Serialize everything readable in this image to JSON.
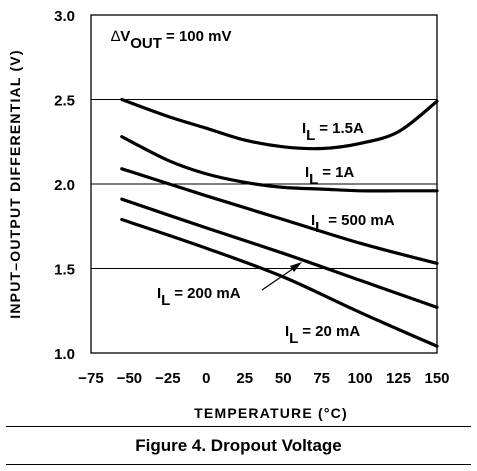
{
  "figure_caption": "Figure 4. Dropout Voltage",
  "chart_data": {
    "type": "line",
    "title": "",
    "xlabel": "TEMPERATURE (°C)",
    "ylabel": "INPUT–OUTPUT DIFFERENTIAL (V)",
    "xlim": [
      -75,
      150
    ],
    "ylim": [
      1.0,
      3.0
    ],
    "xticks": [
      -75,
      -50,
      -25,
      0,
      25,
      50,
      75,
      100,
      125,
      150
    ],
    "yticks": [
      1.0,
      1.5,
      2.0,
      2.5,
      3.0
    ],
    "xtick_labels": [
      "−75",
      "−50",
      "−25",
      "0",
      "25",
      "50",
      "75",
      "100",
      "125",
      "150"
    ],
    "ytick_labels": [
      "1.0",
      "1.5",
      "2.0",
      "2.5",
      "3.0"
    ],
    "grid": true,
    "annotation_delta": "∆",
    "annotation_v": "V",
    "annotation_sub": "OUT",
    "annotation_rest": " = 100 mV",
    "series": [
      {
        "name_prefix": "I",
        "name_sub": "L",
        "name_value": " = 1.5A",
        "x": [
          -55,
          -25,
          0,
          25,
          50,
          75,
          100,
          125,
          150
        ],
        "y": [
          2.5,
          2.4,
          2.33,
          2.26,
          2.22,
          2.21,
          2.24,
          2.31,
          2.49
        ]
      },
      {
        "name_prefix": "I",
        "name_sub": "L",
        "name_value": " = 1A",
        "x": [
          -55,
          -25,
          0,
          25,
          50,
          75,
          100,
          125,
          150
        ],
        "y": [
          2.28,
          2.14,
          2.06,
          2.01,
          1.98,
          1.97,
          1.96,
          1.96,
          1.96
        ]
      },
      {
        "name_prefix": "I",
        "name_sub": "L",
        "name_value": " = 500 mA",
        "x": [
          -55,
          0,
          50,
          100,
          150
        ],
        "y": [
          2.09,
          1.93,
          1.79,
          1.65,
          1.53
        ]
      },
      {
        "name_prefix": "I",
        "name_sub": "L",
        "name_value": " = 200 mA",
        "x": [
          -55,
          0,
          50,
          100,
          150
        ],
        "y": [
          1.91,
          1.74,
          1.59,
          1.43,
          1.27
        ]
      },
      {
        "name_prefix": "I",
        "name_sub": "L",
        "name_value": " = 20 mA",
        "x": [
          -55,
          0,
          50,
          100,
          150
        ],
        "y": [
          1.79,
          1.62,
          1.45,
          1.24,
          1.04
        ]
      }
    ]
  }
}
